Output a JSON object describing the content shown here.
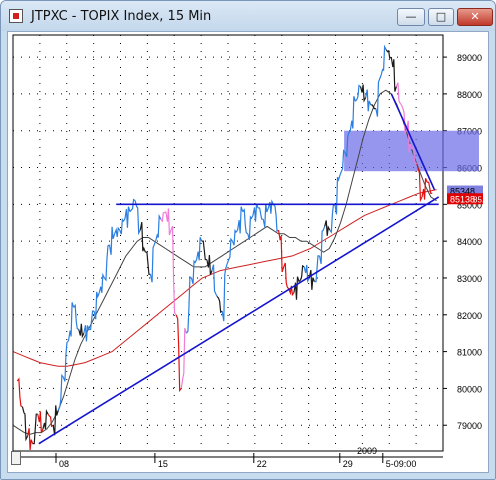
{
  "window": {
    "title": "JTPXC - TOPIX Index, 15 Min",
    "buttons": {
      "minimize": "—",
      "maximize": "□",
      "close": "✕"
    }
  },
  "chart_data": {
    "type": "line",
    "title": "JTPXC - TOPIX Index, 15 Min",
    "y_ticks": [
      79000,
      80000,
      81000,
      82000,
      83000,
      84000,
      85000,
      86000,
      87000,
      88000,
      89000
    ],
    "y_tick_labels": [
      "79000",
      "80000",
      "81000",
      "82000",
      "83000",
      "84000",
      "85000",
      "86000",
      "87000",
      "88000",
      "89000"
    ],
    "ylim": [
      78300,
      89600
    ],
    "x_tick_labels": [
      "08",
      "15",
      "22",
      "29",
      "5-09:00"
    ],
    "x_tick_positions": [
      0.1,
      0.33,
      0.56,
      0.76,
      0.86
    ],
    "year_label": "2009",
    "price_tags": [
      {
        "label": "85348",
        "value": 85348,
        "bg": "#7f7fe0",
        "fg": "#000000"
      },
      {
        "label": "85138",
        "value": 85138,
        "bg": "#e00000",
        "fg": "#ffffff"
      }
    ],
    "price_tag_extra": "85.1",
    "series": [
      {
        "role": "price",
        "values": [
          80200,
          79500,
          78700,
          78500,
          79300,
          78900,
          79300,
          79000,
          79400,
          80300,
          81300,
          82200,
          81600,
          81500,
          81600,
          82100,
          82600,
          83000,
          83900,
          84200,
          84300,
          84600,
          84800,
          85100,
          84300,
          83700,
          83100,
          84000,
          84600,
          84800,
          84300,
          82000,
          80000,
          81500,
          83000,
          83500,
          84000,
          83500,
          83200,
          82500,
          82100,
          83400,
          84000,
          84300,
          84800,
          84200,
          84700,
          84900,
          84600,
          84900,
          85000,
          84300,
          83300,
          82700,
          82600,
          82900,
          83300,
          83000,
          82900,
          83600,
          84400,
          84300,
          85000,
          85800,
          86400,
          87000,
          87800,
          88200,
          87900,
          87700,
          87600,
          88500,
          89200,
          89000,
          88200,
          87700,
          87000,
          86500,
          86100,
          85200,
          85600,
          85300
        ],
        "colors_note": "segments colored blue (up), black, pink and red"
      },
      {
        "role": "short moving average",
        "color": "#444444",
        "values": [
          79000,
          78900,
          78800,
          78750,
          78800,
          78800,
          78900,
          79100,
          79400,
          79800,
          80300,
          80800,
          81200,
          81500,
          81800,
          82100,
          82400,
          82700,
          83000,
          83300,
          83600,
          83800,
          84000,
          84100,
          84100,
          84000,
          83900,
          83800,
          83700,
          83600,
          83500,
          83400,
          83300,
          83300,
          83300,
          83400,
          83500,
          83600,
          83700,
          83800,
          83900,
          84000,
          84100,
          84200,
          84300,
          84400,
          84300,
          84200,
          84200,
          84100,
          84100,
          84000,
          84000,
          83900,
          83800,
          83700,
          83800,
          84100,
          84500,
          85000,
          85600,
          86200,
          86800,
          87300,
          87700,
          88000,
          88100,
          88000,
          87700,
          87300,
          86800,
          86300,
          85900,
          85500,
          85200,
          85100
        ]
      },
      {
        "role": "long moving average",
        "color": "#d02020",
        "values": [
          81000,
          80900,
          80800,
          80700,
          80650,
          80600,
          80600,
          80650,
          80700,
          80800,
          80900,
          81000,
          81200,
          81400,
          81600,
          81800,
          82000,
          82200,
          82400,
          82600,
          82800,
          83000,
          83100,
          83200,
          83250,
          83300,
          83350,
          83400,
          83450,
          83500,
          83550,
          83600,
          83700,
          83800,
          83950,
          84100,
          84250,
          84400,
          84550,
          84700,
          84800,
          84900,
          85000,
          85100,
          85200,
          85300,
          85350,
          85400
        ]
      }
    ],
    "trendlines": [
      {
        "name": "support trendline",
        "from": {
          "x": 0.06,
          "y": 78500
        },
        "to": {
          "x": 0.99,
          "y": 85200
        },
        "color": "#1515d0"
      },
      {
        "name": "horizontal resistance",
        "from": {
          "x": 0.24,
          "y": 85000
        },
        "to": {
          "x": 0.99,
          "y": 85000
        },
        "color": "#1515d0"
      },
      {
        "name": "descending trendline",
        "from": {
          "x": 0.88,
          "y": 88000
        },
        "to": {
          "x": 0.98,
          "y": 85400
        },
        "color": "#1515d0"
      }
    ],
    "highlight_zone": {
      "y_from": 85900,
      "y_to": 87000,
      "color": "#6a6ae8"
    },
    "grid": true
  }
}
